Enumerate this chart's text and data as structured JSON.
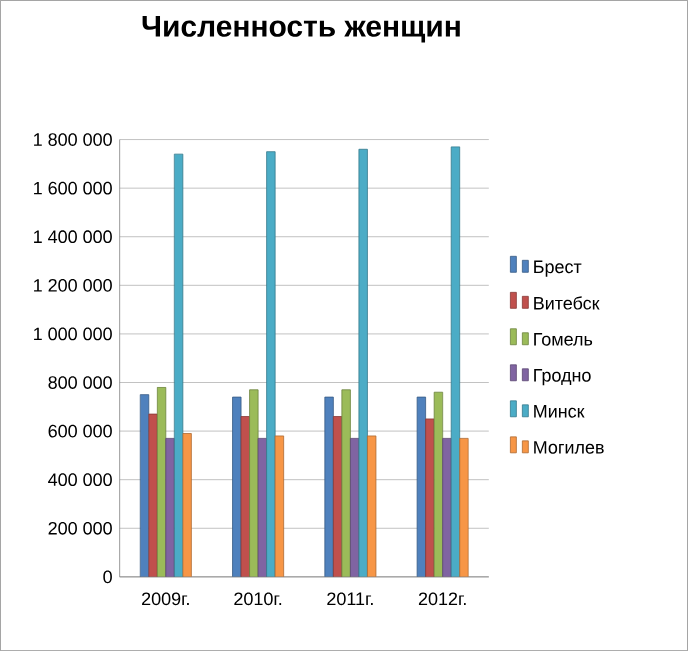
{
  "chart_data": {
    "type": "bar",
    "title": "Численность женщин",
    "categories": [
      "2009г.",
      "2010г.",
      "2011г.",
      "2012г."
    ],
    "series": [
      {
        "name": "Брест",
        "color": "#4f81bd",
        "values": [
          750000,
          740000,
          740000,
          740000
        ]
      },
      {
        "name": "Витебск",
        "color": "#c0504d",
        "values": [
          670000,
          660000,
          660000,
          650000
        ]
      },
      {
        "name": "Гомель",
        "color": "#9bbb59",
        "values": [
          780000,
          770000,
          770000,
          760000
        ]
      },
      {
        "name": "Гродно",
        "color": "#8064a2",
        "values": [
          570000,
          570000,
          570000,
          570000
        ]
      },
      {
        "name": "Минск",
        "color": "#4bacc6",
        "values": [
          1740000,
          1750000,
          1760000,
          1770000
        ]
      },
      {
        "name": "Могилев",
        "color": "#f79646",
        "values": [
          590000,
          580000,
          580000,
          570000
        ]
      }
    ],
    "ylim": [
      0,
      1800000
    ],
    "yticks": [
      {
        "value": 0,
        "label": "0"
      },
      {
        "value": 200000,
        "label": "200 000"
      },
      {
        "value": 400000,
        "label": "400 000"
      },
      {
        "value": 600000,
        "label": "600 000"
      },
      {
        "value": 800000,
        "label": "800 000"
      },
      {
        "value": 1000000,
        "label": "1 000 000"
      },
      {
        "value": 1200000,
        "label": "1 200 000"
      },
      {
        "value": 1400000,
        "label": "1 400 000"
      },
      {
        "value": 1600000,
        "label": "1 600 000"
      },
      {
        "value": 1800000,
        "label": "1 800 000"
      }
    ],
    "grid": "y",
    "legend": "right"
  }
}
